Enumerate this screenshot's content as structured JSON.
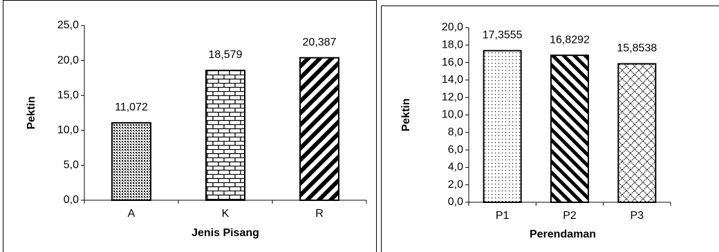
{
  "chart_data": [
    {
      "type": "bar",
      "x_label": "Jenis Pisang",
      "y_label": "Pektin",
      "categories": [
        "A",
        "K",
        "R"
      ],
      "values": [
        11.072,
        18.579,
        20.387
      ],
      "value_labels": [
        "11,072",
        "18,579",
        "20,387"
      ],
      "color": "#000000",
      "ylim": [
        0,
        25
      ],
      "yticks": [
        {
          "value": 0,
          "label": "0,0"
        },
        {
          "value": 5,
          "label": "5,0"
        },
        {
          "value": 10,
          "label": "10,0"
        },
        {
          "value": 15,
          "label": "15,0"
        },
        {
          "value": 20,
          "label": "20,0"
        },
        {
          "value": 25,
          "label": "25,0"
        }
      ]
    },
    {
      "type": "bar",
      "x_label": "Perendaman",
      "y_label": "Pektin",
      "categories": [
        "P1",
        "P2",
        "P3"
      ],
      "values": [
        17.3555,
        16.8292,
        15.8538
      ],
      "value_labels": [
        "17,3555",
        "16,8292",
        "15,8538"
      ],
      "color": "#000000",
      "ylim": [
        0,
        20
      ],
      "yticks": [
        {
          "value": 0,
          "label": "0,0"
        },
        {
          "value": 2,
          "label": "2,0"
        },
        {
          "value": 4,
          "label": "4,0"
        },
        {
          "value": 6,
          "label": "6,0"
        },
        {
          "value": 8,
          "label": "8,0"
        },
        {
          "value": 10,
          "label": "10,0"
        },
        {
          "value": 12,
          "label": "12,0"
        },
        {
          "value": 14,
          "label": "14,0"
        },
        {
          "value": 16,
          "label": "16,0"
        },
        {
          "value": 18,
          "label": "18,0"
        },
        {
          "value": 20,
          "label": "20,0"
        }
      ]
    }
  ]
}
